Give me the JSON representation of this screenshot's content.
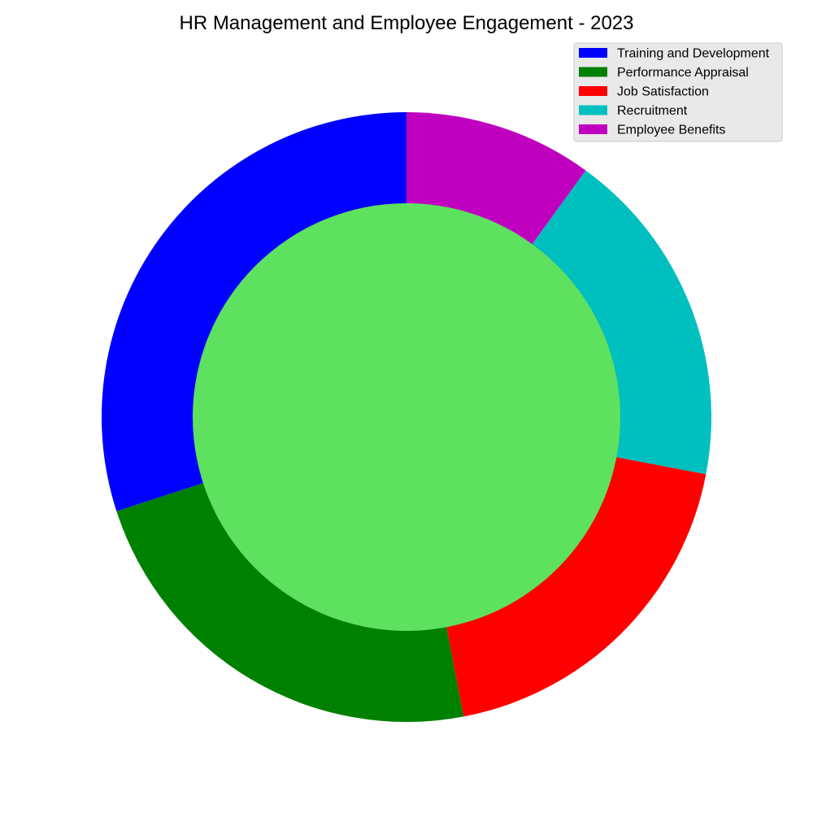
{
  "chart_data": {
    "type": "pie",
    "title": "HR Management and Employee Engagement - 2023",
    "categories": [
      "Training and Development",
      "Performance Appraisal",
      "Job Satisfaction",
      "Recruitment",
      "Employee Benefits"
    ],
    "values": [
      30,
      23,
      19,
      18,
      10
    ],
    "colors": [
      "#0000ff",
      "#008000",
      "#ff0000",
      "#00bfbf",
      "#bf00bf"
    ],
    "center_color": "#5ee15e",
    "start_angle_deg": 90,
    "direction": "counterclockwise",
    "donut": true,
    "legend": {
      "placement": "top-right",
      "background": "#e9e9e9"
    }
  }
}
